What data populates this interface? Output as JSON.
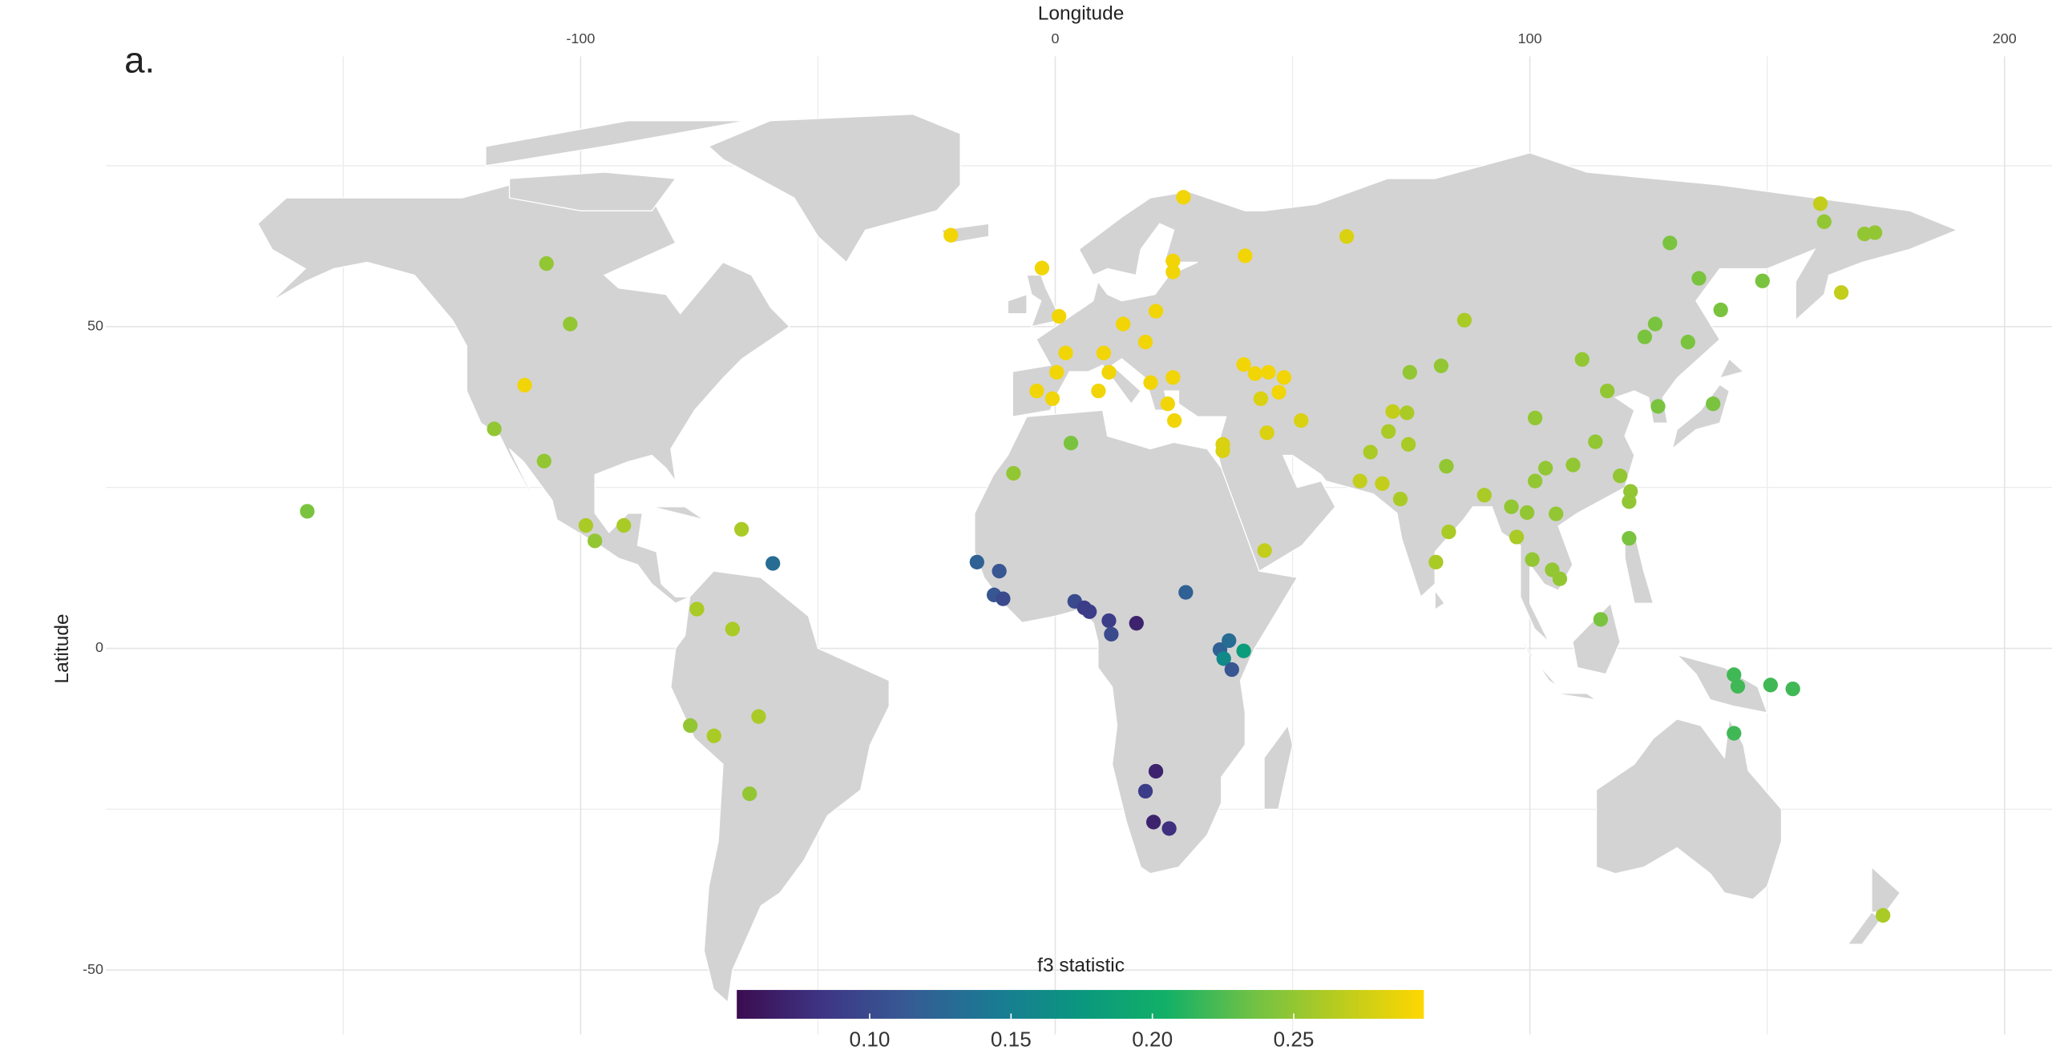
{
  "chart_data": {
    "type": "scatter",
    "panel_label": "a.",
    "x_label": "Longitude",
    "y_label": "Latitude",
    "colorbar_title": "f3 statistic",
    "xlim": [
      -200,
      210
    ],
    "ylim": [
      -60,
      92
    ],
    "xticks": [
      -100,
      0,
      100,
      200
    ],
    "yticks": [
      50,
      0,
      -50
    ],
    "grid": true,
    "clim": [
      0.053,
      0.296
    ],
    "cticks": [
      {
        "value": 0.1,
        "label": "0.10"
      },
      0.15,
      {
        "value": 0.2,
        "label": "0.20"
      },
      0.25
    ],
    "colorscale": [
      "#3b0c4f",
      "#3e3585",
      "#365b94",
      "#1a7a93",
      "#0a977f",
      "#12b067",
      "#6fc145",
      "#b8cc1f",
      "#ffd700"
    ],
    "x": [
      -157.6,
      -107.2,
      -102.2,
      -111.8,
      -118.2,
      -107.7,
      -98.9,
      -97.0,
      -90.9,
      -66.1,
      -59.5,
      -75.5,
      -68.0,
      -76.9,
      -71.9,
      -62.5,
      -64.4,
      -22.0,
      -2.8,
      0.8,
      2.2,
      0.3,
      -3.9,
      -0.6,
      10.2,
      11.3,
      9.1,
      14.3,
      19.0,
      21.2,
      24.8,
      24.8,
      27.0,
      40.0,
      20.1,
      23.7,
      25.1,
      24.8,
      39.7,
      42.1,
      44.9,
      48.2,
      47.1,
      43.3,
      51.8,
      44.6,
      35.3,
      35.3,
      61.4,
      3.3,
      -8.8,
      44.1,
      -16.5,
      -11.8,
      -12.9,
      -11.0,
      4.1,
      6.1,
      7.2,
      11.3,
      11.8,
      17.1,
      27.5,
      34.7,
      36.6,
      35.5,
      37.2,
      39.7,
      21.2,
      19.0,
      20.7,
      24.0,
      64.2,
      68.9,
      66.4,
      70.2,
      71.1,
      74.1,
      74.4,
      72.7,
      74.7,
      81.3,
      86.2,
      82.4,
      82.9,
      80.2,
      90.4,
      97.2,
      96.1,
      101.1,
      101.1,
      103.3,
      99.4,
      100.5,
      104.7,
      106.3,
      105.5,
      109.1,
      111.0,
      116.3,
      113.8,
      119.0,
      121.2,
      120.9,
      120.9,
      114.9,
      129.5,
      135.6,
      140.2,
      126.4,
      124.2,
      133.3,
      127.0,
      138.6,
      149.0,
      161.2,
      162.0,
      165.6,
      172.7,
      170.5,
      143.0,
      143.8,
      150.7,
      155.4,
      143.0,
      174.4
    ],
    "y": [
      21.3,
      59.8,
      50.4,
      40.9,
      34.1,
      29.1,
      19.1,
      16.7,
      19.1,
      18.5,
      13.2,
      6.1,
      3.0,
      -12.0,
      -13.6,
      -10.6,
      -22.6,
      64.2,
      59.1,
      51.6,
      45.9,
      42.9,
      40.0,
      38.8,
      45.9,
      42.9,
      40.0,
      50.4,
      47.6,
      52.4,
      60.2,
      58.5,
      70.1,
      61.0,
      41.3,
      38.0,
      35.4,
      42.1,
      44.1,
      42.7,
      42.9,
      42.1,
      39.8,
      38.8,
      35.4,
      33.5,
      31.7,
      30.7,
      64.0,
      31.9,
      27.2,
      15.2,
      13.4,
      12.0,
      8.3,
      7.7,
      7.3,
      6.3,
      5.7,
      4.3,
      2.2,
      3.9,
      8.7,
      -0.2,
      1.2,
      -1.6,
      -3.3,
      -0.4,
      -19.1,
      -22.2,
      -27.0,
      -28.0,
      26.0,
      25.6,
      30.5,
      33.7,
      36.8,
      36.6,
      31.7,
      23.2,
      42.9,
      43.9,
      51.0,
      28.3,
      18.1,
      13.4,
      23.8,
      17.3,
      22.0,
      26.0,
      35.8,
      28.0,
      21.1,
      13.8,
      12.2,
      10.8,
      20.9,
      28.5,
      44.9,
      40.0,
      32.1,
      26.8,
      24.4,
      22.8,
      17.1,
      4.5,
      63.0,
      57.5,
      52.6,
      50.4,
      48.4,
      47.6,
      37.6,
      38.0,
      57.1,
      69.1,
      66.3,
      55.3,
      64.6,
      64.4,
      -4.1,
      -5.9,
      -5.7,
      -6.3,
      -13.2,
      -41.5
    ],
    "c": [
      0.24,
      0.25,
      0.25,
      0.29,
      0.25,
      0.25,
      0.26,
      0.25,
      0.26,
      0.26,
      0.13,
      0.26,
      0.26,
      0.25,
      0.26,
      0.26,
      0.25,
      0.29,
      0.29,
      0.29,
      0.29,
      0.29,
      0.29,
      0.29,
      0.29,
      0.29,
      0.29,
      0.29,
      0.29,
      0.29,
      0.29,
      0.29,
      0.29,
      0.29,
      0.29,
      0.29,
      0.29,
      0.29,
      0.29,
      0.29,
      0.29,
      0.29,
      0.29,
      0.28,
      0.28,
      0.28,
      0.28,
      0.28,
      0.28,
      0.24,
      0.25,
      0.27,
      0.12,
      0.11,
      0.11,
      0.1,
      0.1,
      0.09,
      0.09,
      0.09,
      0.1,
      0.07,
      0.12,
      0.12,
      0.13,
      0.16,
      0.11,
      0.18,
      0.07,
      0.09,
      0.07,
      0.08,
      0.27,
      0.27,
      0.26,
      0.26,
      0.27,
      0.26,
      0.26,
      0.26,
      0.25,
      0.25,
      0.26,
      0.25,
      0.26,
      0.26,
      0.26,
      0.26,
      0.25,
      0.25,
      0.25,
      0.25,
      0.25,
      0.25,
      0.25,
      0.25,
      0.25,
      0.25,
      0.25,
      0.25,
      0.25,
      0.25,
      0.25,
      0.25,
      0.24,
      0.24,
      0.24,
      0.24,
      0.24,
      0.24,
      0.24,
      0.24,
      0.24,
      0.24,
      0.24,
      0.27,
      0.25,
      0.27,
      0.25,
      0.25,
      0.22,
      0.22,
      0.22,
      0.22,
      0.22,
      0.26
    ]
  }
}
